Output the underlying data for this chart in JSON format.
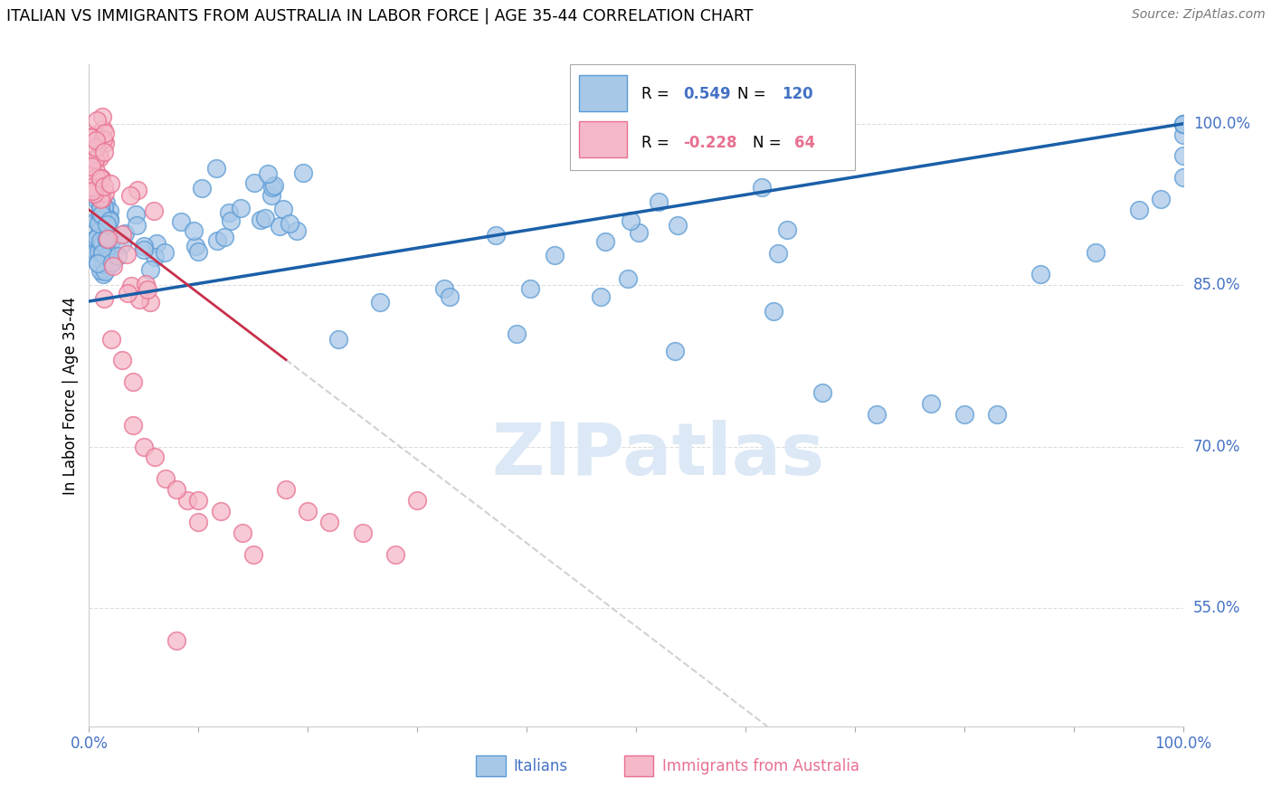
{
  "title": "ITALIAN VS IMMIGRANTS FROM AUSTRALIA IN LABOR FORCE | AGE 35-44 CORRELATION CHART",
  "source": "Source: ZipAtlas.com",
  "ylabel": "In Labor Force | Age 35-44",
  "blue_color": "#a8c8e8",
  "blue_edge_color": "#5b9bd5",
  "pink_color": "#f4b8c8",
  "pink_edge_color": "#e87090",
  "trend_blue": "#1a5fa8",
  "trend_pink": "#c8304c",
  "trend_gray": "#cccccc",
  "legend_R_blue": "0.549",
  "legend_N_blue": "120",
  "legend_R_pink": "-0.228",
  "legend_N_pink": "64",
  "legend_color_blue": "#4472c4",
  "legend_color_pink": "#e87090",
  "watermark": "ZIPatlas",
  "watermark_color": "#dce8f5",
  "grid_color": "#dddddd",
  "axis_color": "#4472c4",
  "xlabel_0": "0.0%",
  "xlabel_100": "100.0%",
  "ylabel_labels": [
    "55.0%",
    "70.0%",
    "85.0%",
    "100.0%"
  ],
  "ylabel_vals": [
    0.55,
    0.7,
    0.85,
    1.0
  ],
  "xlim": [
    0.0,
    1.0
  ],
  "ylim": [
    0.44,
    1.055
  ]
}
